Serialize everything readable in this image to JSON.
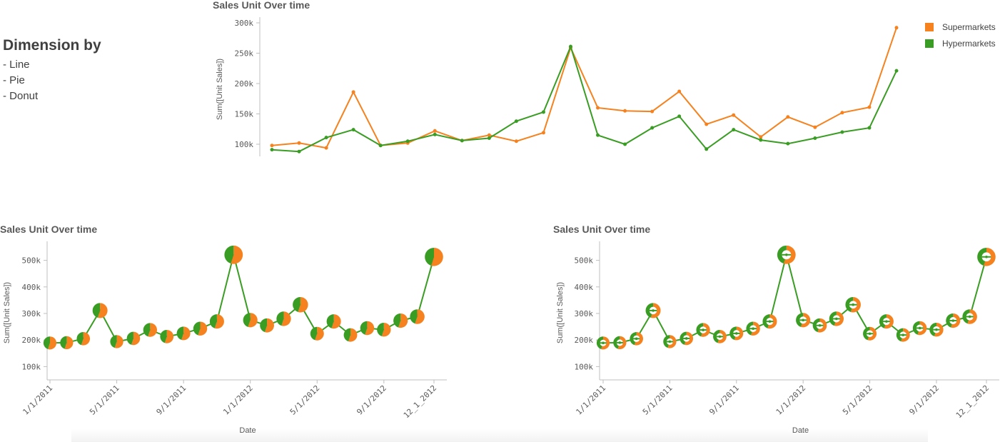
{
  "side": {
    "heading": "Dimension by",
    "items": [
      "- Line",
      "- Pie",
      "- Donut"
    ]
  },
  "colors": {
    "supermarkets": "#f5821f",
    "hypermarkets": "#3a9d23"
  },
  "chart_data": [
    {
      "type": "line",
      "title": "Sales Unit Over time",
      "ylabel": "Sum([Unit Sales])",
      "yticks": [
        "300k",
        "250k",
        "200k",
        "150k",
        "100k"
      ],
      "ytick_values": [
        300000,
        250000,
        200000,
        150000,
        100000
      ],
      "ylim": [
        80000,
        300000
      ],
      "legend": {
        "placement": "top-right"
      },
      "series": [
        {
          "name": "Supermarkets",
          "color": "#f5821f",
          "values": [
            98000,
            102000,
            94000,
            186000,
            98000,
            102000,
            122000,
            106000,
            115000,
            105000,
            119000,
            259000,
            160000,
            155000,
            154000,
            187000,
            133000,
            148000,
            112000,
            145000,
            128000,
            152000,
            161000,
            292000
          ]
        },
        {
          "name": "Hypermarkets",
          "color": "#3a9d23",
          "values": [
            91000,
            88000,
            111000,
            124000,
            98000,
            105000,
            116000,
            106000,
            110000,
            138000,
            153000,
            261000,
            115000,
            100000,
            127000,
            146000,
            92000,
            124000,
            107000,
            101000,
            110000,
            120000,
            127000,
            221000
          ]
        }
      ]
    },
    {
      "type": "line",
      "marker": "pie",
      "title": "Sales Unit Over time",
      "ylabel": "Sum([Unit Sales])",
      "xlabel": "Date",
      "yticks": [
        "500k",
        "400k",
        "300k",
        "200k",
        "100k"
      ],
      "ytick_values": [
        500000,
        400000,
        300000,
        200000,
        100000
      ],
      "ylim": [
        50000,
        550000
      ],
      "xticks": [
        "1/1/2011",
        "5/1/2011",
        "9/1/2011",
        "1/1/2012",
        "5/1/2012",
        "9/1/2012",
        "12_1_2012"
      ],
      "xtick_index": [
        0,
        4,
        8,
        12,
        16,
        20,
        23
      ],
      "values": [
        189000,
        190000,
        205000,
        311000,
        194000,
        206000,
        238000,
        213000,
        225000,
        243000,
        270000,
        521000,
        275000,
        255000,
        280000,
        333000,
        224000,
        270000,
        219000,
        245000,
        239000,
        273000,
        288000,
        513000
      ],
      "supermarket_share": 0.55
    },
    {
      "type": "line",
      "marker": "donut",
      "title": "Sales Unit Over time",
      "ylabel": "Sum([Unit Sales])",
      "xlabel": "Date",
      "yticks": [
        "500k",
        "400k",
        "300k",
        "200k",
        "100k"
      ],
      "ytick_values": [
        500000,
        400000,
        300000,
        200000,
        100000
      ],
      "ylim": [
        50000,
        550000
      ],
      "xticks": [
        "1/1/2011",
        "5/1/2011",
        "9/1/2011",
        "1/1/2012",
        "5/1/2012",
        "9/1/2012",
        "12_1_2012"
      ],
      "xtick_index": [
        0,
        4,
        8,
        12,
        16,
        20,
        23
      ],
      "values": [
        189000,
        190000,
        205000,
        311000,
        194000,
        206000,
        238000,
        213000,
        225000,
        243000,
        270000,
        521000,
        275000,
        255000,
        280000,
        333000,
        224000,
        270000,
        219000,
        245000,
        239000,
        273000,
        288000,
        513000
      ],
      "supermarket_share": 0.55
    }
  ]
}
